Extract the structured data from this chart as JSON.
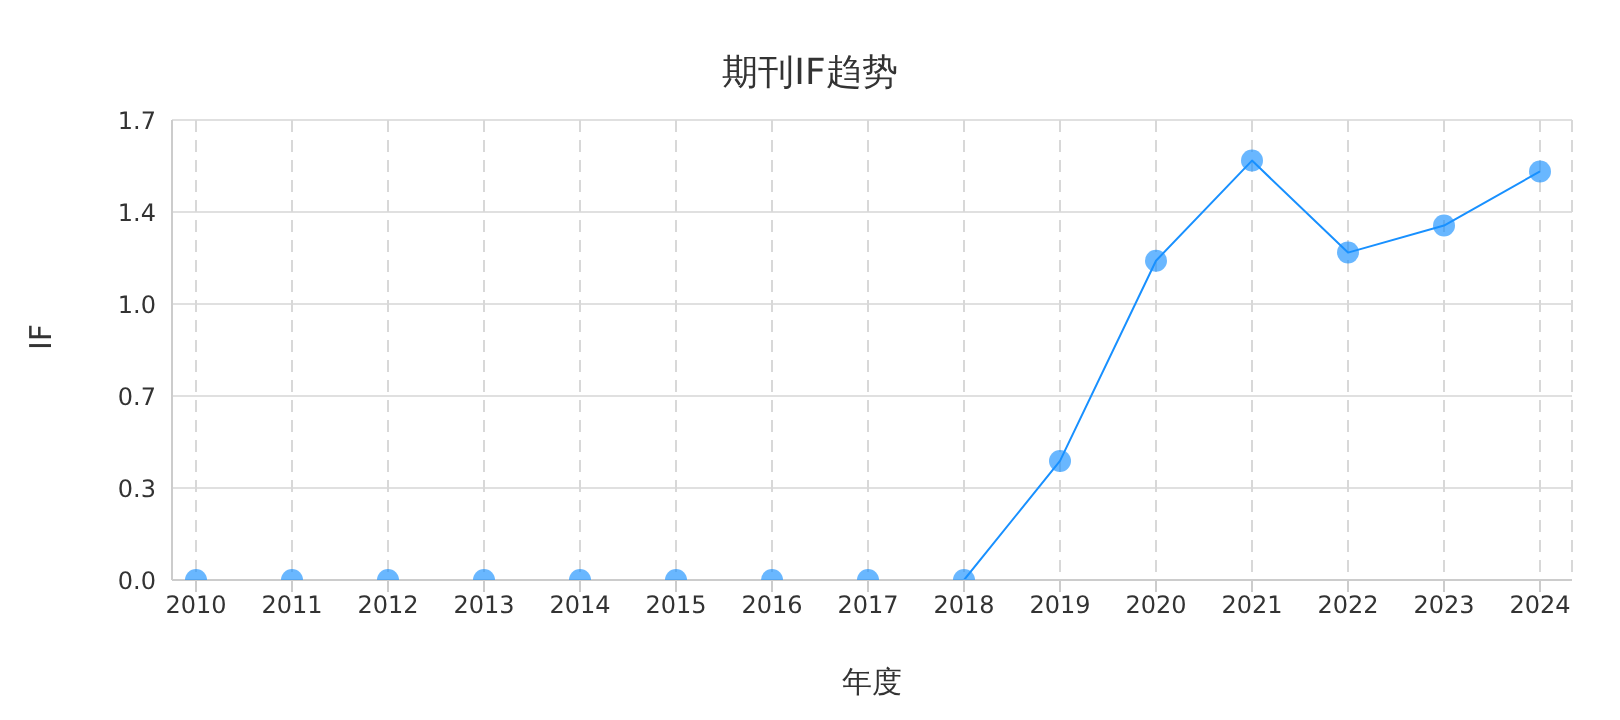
{
  "chart_data": {
    "type": "line",
    "title": "期刊IF趋势",
    "xlabel": "年度",
    "ylabel": "IF",
    "categories": [
      "2010",
      "2011",
      "2012",
      "2013",
      "2014",
      "2015",
      "2016",
      "2017",
      "2018",
      "2019",
      "2020",
      "2021",
      "2022",
      "2023",
      "2024"
    ],
    "series": [
      {
        "color": "#1890ff",
        "values": [
          0,
          0,
          0,
          0,
          0,
          0,
          0,
          0,
          0,
          0.44,
          1.18,
          1.55,
          1.21,
          1.31,
          1.51
        ]
      }
    ],
    "ylim": [
      0,
      1.7
    ],
    "yticks": [
      {
        "value": 0,
        "label": "0.0"
      },
      {
        "value": 0.34,
        "label": "0.3"
      },
      {
        "value": 0.68,
        "label": "0.7"
      },
      {
        "value": 1.02,
        "label": "1.0"
      },
      {
        "value": 1.36,
        "label": "1.4"
      },
      {
        "value": 1.7,
        "label": "1.7"
      }
    ],
    "grid": true,
    "marker": "circle",
    "line_style": "solid",
    "legend": false
  }
}
